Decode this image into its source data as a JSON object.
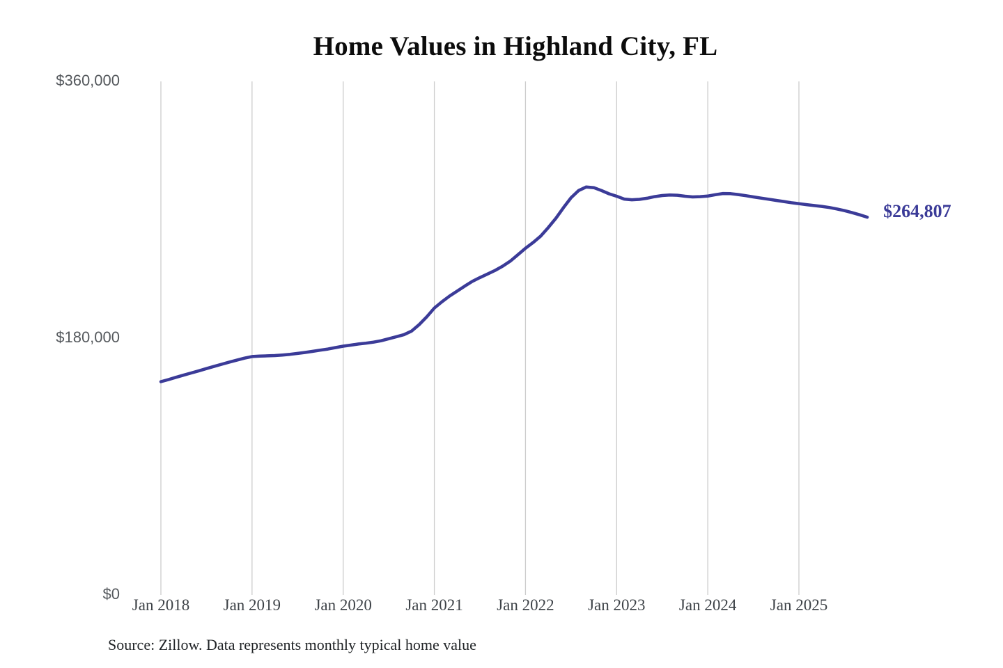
{
  "title": "Home Values in Highland City, FL",
  "source_note": "Source: Zillow. Data represents monthly typical home value",
  "end_label": "$264,807",
  "colors": {
    "line": "#3b3b98",
    "grid": "#cccccc",
    "title_text": "#0c0c0c",
    "y_tick_text": "#55595d",
    "x_tick_text": "#3d4247",
    "end_label_text": "#3b3b98",
    "background": "#ffffff"
  },
  "chart_data": {
    "type": "line",
    "title": "Home Values in Highland City, FL",
    "xlabel": "",
    "ylabel": "",
    "ylim": [
      0,
      360000
    ],
    "grid": "vertical-only",
    "legend": "none",
    "y_ticks": [
      {
        "label": "$0",
        "value": 0
      },
      {
        "label": "$180,000",
        "value": 180000
      },
      {
        "label": "$360,000",
        "value": 360000
      }
    ],
    "x_ticks": [
      {
        "label": "Jan 2018",
        "month_index": 0
      },
      {
        "label": "Jan 2019",
        "month_index": 12
      },
      {
        "label": "Jan 2020",
        "month_index": 24
      },
      {
        "label": "Jan 2021",
        "month_index": 36
      },
      {
        "label": "Jan 2022",
        "month_index": 48
      },
      {
        "label": "Jan 2023",
        "month_index": 60
      },
      {
        "label": "Jan 2024",
        "month_index": 72
      },
      {
        "label": "Jan 2025",
        "month_index": 84
      }
    ],
    "x": [
      "2018-01",
      "2018-02",
      "2018-03",
      "2018-04",
      "2018-05",
      "2018-06",
      "2018-07",
      "2018-08",
      "2018-09",
      "2018-10",
      "2018-11",
      "2018-12",
      "2019-01",
      "2019-02",
      "2019-03",
      "2019-04",
      "2019-05",
      "2019-06",
      "2019-07",
      "2019-08",
      "2019-09",
      "2019-10",
      "2019-11",
      "2019-12",
      "2020-01",
      "2020-02",
      "2020-03",
      "2020-04",
      "2020-05",
      "2020-06",
      "2020-07",
      "2020-08",
      "2020-09",
      "2020-10",
      "2020-11",
      "2020-12",
      "2021-01",
      "2021-02",
      "2021-03",
      "2021-04",
      "2021-05",
      "2021-06",
      "2021-07",
      "2021-08",
      "2021-09",
      "2021-10",
      "2021-11",
      "2021-12",
      "2022-01",
      "2022-02",
      "2022-03",
      "2022-04",
      "2022-05",
      "2022-06",
      "2022-07",
      "2022-08",
      "2022-09",
      "2022-10",
      "2022-11",
      "2022-12",
      "2023-01",
      "2023-02",
      "2023-03",
      "2023-04",
      "2023-05",
      "2023-06",
      "2023-07",
      "2023-08",
      "2023-09",
      "2023-10",
      "2023-11",
      "2023-12",
      "2024-01",
      "2024-02",
      "2024-03",
      "2024-04",
      "2024-05",
      "2024-06",
      "2024-07",
      "2024-08",
      "2024-09",
      "2024-10",
      "2024-11",
      "2024-12",
      "2025-01",
      "2025-02",
      "2025-03",
      "2025-04",
      "2025-05",
      "2025-06",
      "2025-07",
      "2025-08",
      "2025-09",
      "2025-10"
    ],
    "series": [
      {
        "name": "Monthly typical home value",
        "values": [
          149500,
          151000,
          152600,
          154100,
          155600,
          157100,
          158700,
          160200,
          161700,
          163200,
          164600,
          166000,
          167100,
          167400,
          167600,
          167800,
          168200,
          168700,
          169300,
          170000,
          170800,
          171600,
          172400,
          173400,
          174400,
          175100,
          175900,
          176500,
          177200,
          178200,
          179600,
          181000,
          182500,
          185000,
          189500,
          195000,
          201100,
          205500,
          209500,
          213000,
          216500,
          219800,
          222500,
          225000,
          227500,
          230500,
          234000,
          238500,
          243000,
          247000,
          251500,
          257500,
          264000,
          271500,
          278500,
          283500,
          286000,
          285500,
          283500,
          281200,
          279500,
          277500,
          277000,
          277300,
          278100,
          279200,
          280000,
          280400,
          280200,
          279500,
          279000,
          279200,
          279600,
          280600,
          281400,
          281300,
          280700,
          279900,
          279000,
          278200,
          277400,
          276600,
          275800,
          275000,
          274300,
          273600,
          273000,
          272400,
          271600,
          270600,
          269400,
          268000,
          266500,
          264807
        ]
      }
    ],
    "end_annotation": {
      "label": "$264,807",
      "value": 264807,
      "x": "2025-10"
    },
    "source": "Source: Zillow. Data represents monthly typical home value"
  }
}
